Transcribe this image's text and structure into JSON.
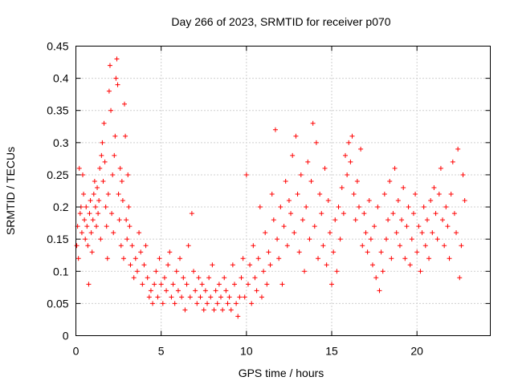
{
  "chart_data": {
    "type": "scatter",
    "title": "Day 266 of 2023, SRMTID for receiver p070",
    "xlabel": "GPS time / hours",
    "ylabel": "SRMTID / TECUs",
    "xlim": [
      0,
      24.3
    ],
    "ylim": [
      0,
      0.45
    ],
    "x_ticks": [
      0,
      5,
      10,
      15,
      20
    ],
    "y_ticks": [
      0,
      0.05,
      0.1,
      0.15,
      0.2,
      0.25,
      0.3,
      0.35,
      0.4,
      0.45
    ],
    "x_tick_labels": [
      "0",
      "5",
      "10",
      "15",
      "20"
    ],
    "y_tick_labels": [
      "0",
      "0.05",
      "0.1",
      "0.15",
      "0.2",
      "0.25",
      "0.3",
      "0.35",
      "0.4",
      "0.45"
    ],
    "grid": true,
    "marker": "+",
    "color": "#ff0000",
    "series": [
      {
        "name": "SRMTID",
        "points": [
          [
            0.05,
            0.14
          ],
          [
            0.1,
            0.17
          ],
          [
            0.15,
            0.12
          ],
          [
            0.2,
            0.26
          ],
          [
            0.25,
            0.19
          ],
          [
            0.3,
            0.2
          ],
          [
            0.35,
            0.16
          ],
          [
            0.4,
            0.25
          ],
          [
            0.45,
            0.22
          ],
          [
            0.5,
            0.18
          ],
          [
            0.55,
            0.15
          ],
          [
            0.6,
            0.2
          ],
          [
            0.65,
            0.17
          ],
          [
            0.7,
            0.14
          ],
          [
            0.75,
            0.08
          ],
          [
            0.8,
            0.19
          ],
          [
            0.85,
            0.21
          ],
          [
            0.9,
            0.16
          ],
          [
            0.95,
            0.13
          ],
          [
            1.0,
            0.18
          ],
          [
            1.05,
            0.22
          ],
          [
            1.1,
            0.24
          ],
          [
            1.15,
            0.2
          ],
          [
            1.2,
            0.17
          ],
          [
            1.25,
            0.23
          ],
          [
            1.3,
            0.19
          ],
          [
            1.35,
            0.21
          ],
          [
            1.4,
            0.26
          ],
          [
            1.45,
            0.15
          ],
          [
            1.5,
            0.28
          ],
          [
            1.55,
            0.3
          ],
          [
            1.6,
            0.24
          ],
          [
            1.65,
            0.33
          ],
          [
            1.7,
            0.27
          ],
          [
            1.75,
            0.2
          ],
          [
            1.8,
            0.17
          ],
          [
            1.85,
            0.12
          ],
          [
            1.9,
            0.22
          ],
          [
            1.95,
            0.38
          ],
          [
            2.0,
            0.42
          ],
          [
            2.05,
            0.35
          ],
          [
            2.1,
            0.19
          ],
          [
            2.15,
            0.25
          ],
          [
            2.2,
            0.16
          ],
          [
            2.25,
            0.28
          ],
          [
            2.3,
            0.31
          ],
          [
            2.35,
            0.4
          ],
          [
            2.4,
            0.43
          ],
          [
            2.45,
            0.39
          ],
          [
            2.5,
            0.22
          ],
          [
            2.55,
            0.18
          ],
          [
            2.6,
            0.26
          ],
          [
            2.65,
            0.14
          ],
          [
            2.7,
            0.24
          ],
          [
            2.75,
            0.21
          ],
          [
            2.8,
            0.12
          ],
          [
            2.85,
            0.36
          ],
          [
            2.9,
            0.31
          ],
          [
            2.95,
            0.18
          ],
          [
            3.0,
            0.15
          ],
          [
            3.05,
            0.25
          ],
          [
            3.1,
            0.2
          ],
          [
            3.15,
            0.17
          ],
          [
            3.2,
            0.11
          ],
          [
            3.3,
            0.14
          ],
          [
            3.4,
            0.09
          ],
          [
            3.5,
            0.12
          ],
          [
            3.6,
            0.1
          ],
          [
            3.7,
            0.16
          ],
          [
            3.8,
            0.13
          ],
          [
            3.9,
            0.08
          ],
          [
            4.0,
            0.11
          ],
          [
            4.1,
            0.14
          ],
          [
            4.2,
            0.09
          ],
          [
            4.3,
            0.06
          ],
          [
            4.4,
            0.07
          ],
          [
            4.5,
            0.05
          ],
          [
            4.6,
            0.08
          ],
          [
            4.7,
            0.1
          ],
          [
            4.8,
            0.06
          ],
          [
            4.9,
            0.12
          ],
          [
            5.0,
            0.08
          ],
          [
            5.1,
            0.05
          ],
          [
            5.2,
            0.09
          ],
          [
            5.3,
            0.07
          ],
          [
            5.4,
            0.11
          ],
          [
            5.5,
            0.13
          ],
          [
            5.6,
            0.06
          ],
          [
            5.7,
            0.08
          ],
          [
            5.8,
            0.05
          ],
          [
            5.9,
            0.1
          ],
          [
            6.0,
            0.07
          ],
          [
            6.1,
            0.12
          ],
          [
            6.2,
            0.06
          ],
          [
            6.3,
            0.09
          ],
          [
            6.4,
            0.04
          ],
          [
            6.5,
            0.08
          ],
          [
            6.6,
            0.14
          ],
          [
            6.7,
            0.06
          ],
          [
            6.8,
            0.19
          ],
          [
            6.9,
            0.1
          ],
          [
            7.0,
            0.07
          ],
          [
            7.1,
            0.05
          ],
          [
            7.2,
            0.09
          ],
          [
            7.3,
            0.06
          ],
          [
            7.4,
            0.08
          ],
          [
            7.5,
            0.04
          ],
          [
            7.6,
            0.07
          ],
          [
            7.7,
            0.05
          ],
          [
            7.8,
            0.09
          ],
          [
            7.9,
            0.06
          ],
          [
            8.0,
            0.11
          ],
          [
            8.1,
            0.04
          ],
          [
            8.2,
            0.07
          ],
          [
            8.3,
            0.05
          ],
          [
            8.4,
            0.08
          ],
          [
            8.5,
            0.06
          ],
          [
            8.6,
            0.04
          ],
          [
            8.7,
            0.09
          ],
          [
            8.8,
            0.07
          ],
          [
            8.9,
            0.05
          ],
          [
            9.0,
            0.06
          ],
          [
            9.1,
            0.04
          ],
          [
            9.2,
            0.11
          ],
          [
            9.3,
            0.08
          ],
          [
            9.4,
            0.05
          ],
          [
            9.5,
            0.03
          ],
          [
            9.6,
            0.06
          ],
          [
            9.7,
            0.09
          ],
          [
            9.8,
            0.12
          ],
          [
            9.9,
            0.06
          ],
          [
            10.0,
            0.25
          ],
          [
            10.1,
            0.08
          ],
          [
            10.2,
            0.11
          ],
          [
            10.3,
            0.05
          ],
          [
            10.4,
            0.14
          ],
          [
            10.5,
            0.09
          ],
          [
            10.6,
            0.07
          ],
          [
            10.7,
            0.12
          ],
          [
            10.8,
            0.2
          ],
          [
            10.9,
            0.06
          ],
          [
            11.0,
            0.1
          ],
          [
            11.1,
            0.16
          ],
          [
            11.2,
            0.08
          ],
          [
            11.3,
            0.13
          ],
          [
            11.4,
            0.11
          ],
          [
            11.5,
            0.22
          ],
          [
            11.6,
            0.18
          ],
          [
            11.7,
            0.32
          ],
          [
            11.8,
            0.15
          ],
          [
            11.9,
            0.12
          ],
          [
            12.0,
            0.2
          ],
          [
            12.1,
            0.08
          ],
          [
            12.2,
            0.17
          ],
          [
            12.3,
            0.24
          ],
          [
            12.4,
            0.14
          ],
          [
            12.5,
            0.21
          ],
          [
            12.6,
            0.19
          ],
          [
            12.7,
            0.28
          ],
          [
            12.8,
            0.16
          ],
          [
            12.9,
            0.31
          ],
          [
            13.0,
            0.22
          ],
          [
            13.1,
            0.13
          ],
          [
            13.2,
            0.25
          ],
          [
            13.3,
            0.18
          ],
          [
            13.4,
            0.1
          ],
          [
            13.5,
            0.2
          ],
          [
            13.6,
            0.27
          ],
          [
            13.7,
            0.15
          ],
          [
            13.8,
            0.24
          ],
          [
            13.9,
            0.33
          ],
          [
            14.0,
            0.17
          ],
          [
            14.1,
            0.3
          ],
          [
            14.2,
            0.12
          ],
          [
            14.3,
            0.22
          ],
          [
            14.4,
            0.19
          ],
          [
            14.5,
            0.14
          ],
          [
            14.6,
            0.26
          ],
          [
            14.7,
            0.11
          ],
          [
            14.8,
            0.21
          ],
          [
            14.9,
            0.16
          ],
          [
            15.0,
            0.08
          ],
          [
            15.1,
            0.13
          ],
          [
            15.2,
            0.18
          ],
          [
            15.3,
            0.1
          ],
          [
            15.4,
            0.2
          ],
          [
            15.5,
            0.15
          ],
          [
            15.6,
            0.23
          ],
          [
            15.7,
            0.19
          ],
          [
            15.8,
            0.28
          ],
          [
            15.9,
            0.25
          ],
          [
            16.0,
            0.3
          ],
          [
            16.1,
            0.27
          ],
          [
            16.2,
            0.31
          ],
          [
            16.3,
            0.22
          ],
          [
            16.4,
            0.18
          ],
          [
            16.5,
            0.24
          ],
          [
            16.6,
            0.2
          ],
          [
            16.7,
            0.29
          ],
          [
            16.8,
            0.14
          ],
          [
            16.9,
            0.19
          ],
          [
            17.0,
            0.16
          ],
          [
            17.1,
            0.13
          ],
          [
            17.2,
            0.21
          ],
          [
            17.3,
            0.15
          ],
          [
            17.4,
            0.11
          ],
          [
            17.5,
            0.17
          ],
          [
            17.6,
            0.09
          ],
          [
            17.7,
            0.2
          ],
          [
            17.8,
            0.07
          ],
          [
            17.9,
            0.13
          ],
          [
            18.0,
            0.1
          ],
          [
            18.1,
            0.22
          ],
          [
            18.2,
            0.15
          ],
          [
            18.3,
            0.18
          ],
          [
            18.4,
            0.24
          ],
          [
            18.5,
            0.12
          ],
          [
            18.6,
            0.19
          ],
          [
            18.7,
            0.26
          ],
          [
            18.8,
            0.16
          ],
          [
            18.9,
            0.21
          ],
          [
            19.0,
            0.14
          ],
          [
            19.1,
            0.18
          ],
          [
            19.2,
            0.23
          ],
          [
            19.3,
            0.12
          ],
          [
            19.4,
            0.17
          ],
          [
            19.5,
            0.2
          ],
          [
            19.6,
            0.11
          ],
          [
            19.7,
            0.15
          ],
          [
            19.8,
            0.19
          ],
          [
            19.9,
            0.22
          ],
          [
            20.0,
            0.13
          ],
          [
            20.1,
            0.17
          ],
          [
            20.2,
            0.1
          ],
          [
            20.3,
            0.16
          ],
          [
            20.4,
            0.2
          ],
          [
            20.5,
            0.14
          ],
          [
            20.6,
            0.18
          ],
          [
            20.7,
            0.12
          ],
          [
            20.8,
            0.21
          ],
          [
            20.9,
            0.16
          ],
          [
            21.0,
            0.23
          ],
          [
            21.1,
            0.19
          ],
          [
            21.2,
            0.15
          ],
          [
            21.3,
            0.22
          ],
          [
            21.4,
            0.26
          ],
          [
            21.5,
            0.18
          ],
          [
            21.6,
            0.14
          ],
          [
            21.7,
            0.2
          ],
          [
            21.8,
            0.17
          ],
          [
            21.9,
            0.12
          ],
          [
            22.0,
            0.22
          ],
          [
            22.1,
            0.27
          ],
          [
            22.2,
            0.19
          ],
          [
            22.3,
            0.16
          ],
          [
            22.4,
            0.29
          ],
          [
            22.5,
            0.09
          ],
          [
            22.6,
            0.14
          ],
          [
            22.7,
            0.25
          ],
          [
            22.8,
            0.21
          ]
        ]
      }
    ]
  }
}
